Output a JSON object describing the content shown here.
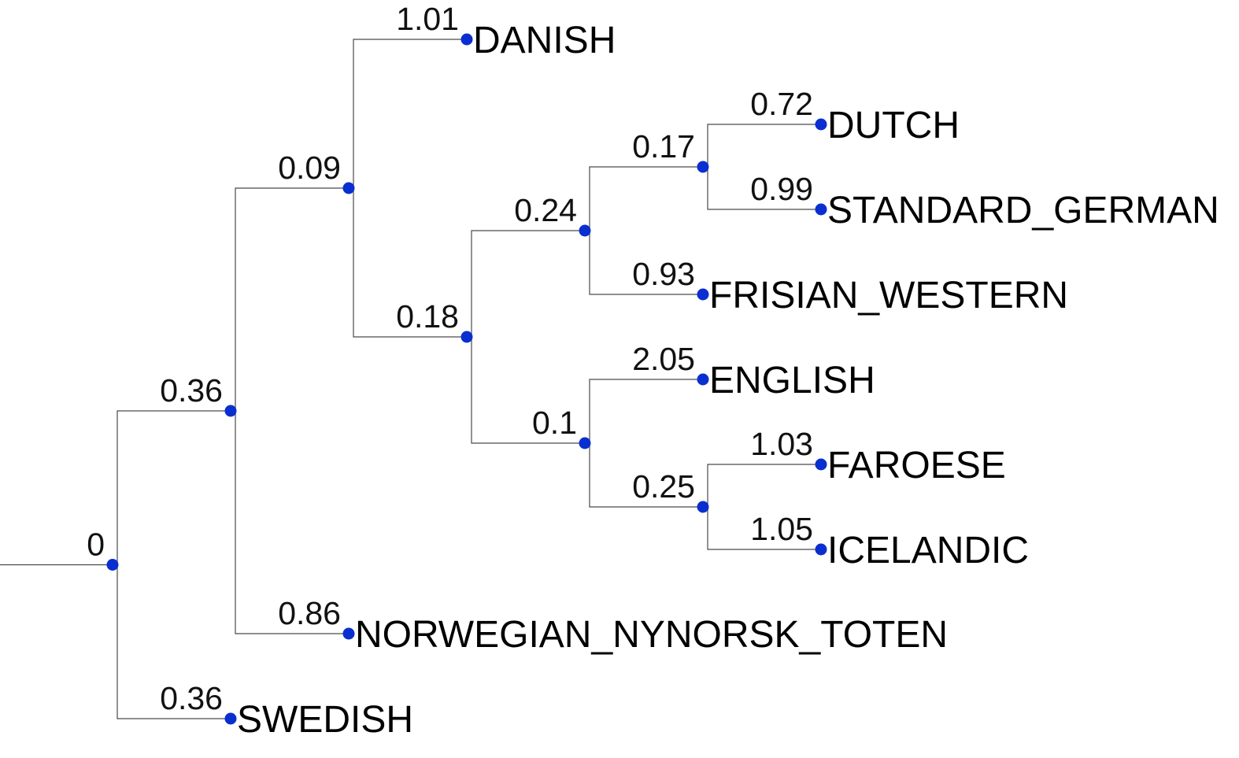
{
  "tree": {
    "node_color": "#0a2fd0",
    "line_color": "#4a4a4a",
    "nodes": [
      {
        "id": "root",
        "parent": null,
        "branch_value": "0"
      },
      {
        "id": "n1",
        "parent": "root",
        "branch_value": "0.36"
      },
      {
        "id": "swedish",
        "parent": "root",
        "branch_value": "0.36",
        "label": "SWEDISH"
      },
      {
        "id": "n2",
        "parent": "n1",
        "branch_value": "0.09"
      },
      {
        "id": "norwegian",
        "parent": "n1",
        "branch_value": "0.86",
        "label": "NORWEGIAN_NYNORSK_TOTEN"
      },
      {
        "id": "danish",
        "parent": "n2",
        "branch_value": "1.01",
        "label": "DANISH"
      },
      {
        "id": "n3",
        "parent": "n2",
        "branch_value": "0.18"
      },
      {
        "id": "n4",
        "parent": "n3",
        "branch_value": "0.24"
      },
      {
        "id": "n5",
        "parent": "n3",
        "branch_value": "0.1"
      },
      {
        "id": "n6",
        "parent": "n4",
        "branch_value": "0.17"
      },
      {
        "id": "frisian",
        "parent": "n4",
        "branch_value": "0.93",
        "label": "FRISIAN_WESTERN"
      },
      {
        "id": "dutch",
        "parent": "n6",
        "branch_value": "0.72",
        "label": "DUTCH"
      },
      {
        "id": "german",
        "parent": "n6",
        "branch_value": "0.99",
        "label": "STANDARD_GERMAN"
      },
      {
        "id": "english",
        "parent": "n5",
        "branch_value": "2.05",
        "label": "ENGLISH"
      },
      {
        "id": "n7",
        "parent": "n5",
        "branch_value": "0.25"
      },
      {
        "id": "faroese",
        "parent": "n7",
        "branch_value": "1.03",
        "label": "FAROESE"
      },
      {
        "id": "icelandic",
        "parent": "n7",
        "branch_value": "1.05",
        "label": "ICELANDIC"
      }
    ]
  }
}
